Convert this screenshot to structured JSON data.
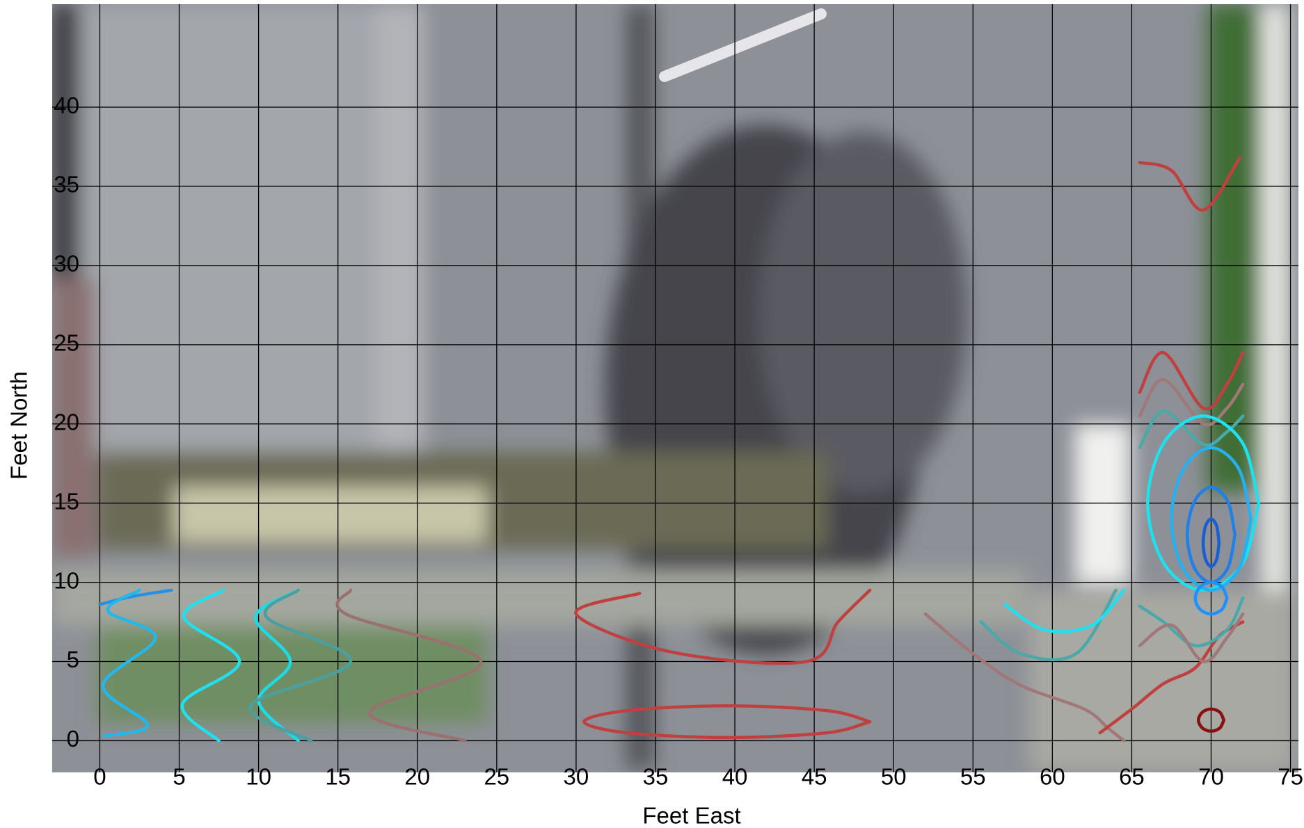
{
  "chart_data": {
    "type": "contour",
    "xlabel": "Feet East",
    "ylabel": "Feet North",
    "xlim": [
      -3,
      75.5
    ],
    "ylim": [
      -2,
      46.5
    ],
    "xticks": [
      0,
      5,
      10,
      15,
      20,
      25,
      30,
      35,
      40,
      45,
      50,
      55,
      60,
      65,
      70,
      75
    ],
    "yticks": [
      0,
      5,
      10,
      15,
      20,
      25,
      30,
      35,
      40
    ],
    "grid": true,
    "series": [
      {
        "color": "#2a8fe0",
        "x": [
          0,
          2,
          4.5
        ],
        "y": [
          8.6,
          9.1,
          9.5
        ]
      },
      {
        "color": "#22b8ee",
        "x": [
          0.3,
          3,
          0.2,
          3.5,
          0.5,
          2.5
        ],
        "y": [
          0.3,
          1,
          3.5,
          6.5,
          8.2,
          9.5
        ]
      },
      {
        "color": "#1fe0f0",
        "x": [
          7.5,
          5.2,
          8.8,
          5.3,
          7.8
        ],
        "y": [
          0,
          2.3,
          5,
          7.8,
          9.5
        ]
      },
      {
        "color": "#18dce8",
        "x": [
          12.5,
          10,
          12,
          9.8,
          12.5
        ],
        "y": [
          0,
          2.5,
          5,
          7.8,
          9.5
        ]
      },
      {
        "color": "#4aa0a0",
        "x": [
          13.3,
          9.5,
          15.8,
          10.5,
          12.5
        ],
        "y": [
          0,
          2.2,
          5,
          7.8,
          9.5
        ]
      },
      {
        "color": "#9a7070",
        "x": [
          23,
          17,
          24,
          15.5,
          15.8
        ],
        "y": [
          0,
          1.8,
          5,
          8,
          9.5
        ]
      },
      {
        "color": "#c04040",
        "x": [
          48.5,
          45.8,
          39.5,
          33.2,
          30.5,
          33.2,
          39.5,
          45.8,
          48.5
        ],
        "y": [
          1.2,
          1.9,
          2.2,
          1.9,
          1.2,
          0.5,
          0.2,
          0.5,
          1.2
        ]
      },
      {
        "color": "#c04040",
        "x": [
          34,
          30,
          36,
          44.5,
          46.5,
          48.5
        ],
        "y": [
          9.3,
          8,
          5.6,
          5,
          7.5,
          9.5
        ]
      },
      {
        "color": "#a07878",
        "x": [
          52,
          55,
          58,
          62,
          63.5,
          64.5
        ],
        "y": [
          8,
          5.5,
          3.5,
          2,
          0.8,
          0
        ]
      },
      {
        "color": "#4aa8a8",
        "x": [
          55.5,
          58,
          61.5,
          64
        ],
        "y": [
          7.5,
          5.5,
          5.5,
          9.5
        ]
      },
      {
        "color": "#1fe0f0",
        "x": [
          57,
          59.5,
          62.5,
          64.5
        ],
        "y": [
          8.6,
          7,
          7.3,
          9.5
        ]
      },
      {
        "color": "#c04040",
        "x": [
          63,
          65,
          67,
          69,
          70.5,
          72
        ],
        "y": [
          0.5,
          2,
          3.6,
          4.6,
          6.6,
          7.5
        ]
      },
      {
        "color": "#c04040",
        "x": [
          65.5,
          67.5,
          69.5,
          71.8
        ],
        "y": [
          36.5,
          36,
          33.5,
          36.8
        ]
      },
      {
        "color": "#c04040",
        "x": [
          65.5,
          67,
          69.5,
          71,
          72
        ],
        "y": [
          22,
          24.5,
          21,
          22.5,
          24.5
        ]
      },
      {
        "color": "#a07878",
        "x": [
          65.5,
          67,
          69.5,
          71,
          72
        ],
        "y": [
          20.5,
          22.8,
          20,
          21,
          22.5
        ]
      },
      {
        "color": "#4aa8a8",
        "x": [
          65.5,
          67,
          69.5,
          71,
          72
        ],
        "y": [
          18.5,
          20.8,
          18.7,
          19.5,
          20.5
        ]
      },
      {
        "color": "#1de0f0",
        "x": [
          73,
          71.95,
          69.5,
          67.05,
          66,
          67.05,
          69.5,
          71.95,
          73
        ],
        "y": [
          15,
          18.85,
          20.5,
          18.85,
          15,
          11.15,
          9.5,
          11.15,
          15
        ]
      },
      {
        "color": "#25b0f0",
        "x": [
          72.5,
          71.75,
          70,
          68.25,
          67.5,
          68.25,
          70,
          71.75,
          72.5
        ],
        "y": [
          14,
          17.15,
          18.5,
          17.15,
          14,
          10.85,
          9.5,
          10.85,
          14
        ]
      },
      {
        "color": "#1f80e8",
        "x": [
          71.5,
          71.05,
          70,
          68.95,
          68.5,
          68.95,
          70,
          71.05,
          71.5
        ],
        "y": [
          13,
          15.1,
          16,
          15.1,
          13,
          10.9,
          10,
          10.9,
          13
        ]
      },
      {
        "color": "#1a5fd0",
        "x": [
          70.5,
          70.35,
          70,
          69.65,
          69.5,
          69.65,
          70,
          70.35,
          70.5
        ],
        "y": [
          12.5,
          13.55,
          14,
          13.55,
          12.5,
          11.45,
          11,
          11.45,
          12.5
        ]
      },
      {
        "color": "#1e90ff",
        "x": [
          71,
          70.7,
          70,
          69.3,
          69,
          69.3,
          70,
          70.7,
          71
        ],
        "y": [
          9,
          9.7,
          10,
          9.7,
          9,
          8.3,
          8,
          8.3,
          9
        ]
      },
      {
        "color": "#4aa8a8",
        "x": [
          65.5,
          67,
          69,
          71,
          72
        ],
        "y": [
          8.5,
          7.5,
          6,
          7,
          9
        ]
      },
      {
        "color": "#a07878",
        "x": [
          65.5,
          67.5,
          69.5,
          71,
          72
        ],
        "y": [
          6,
          7.3,
          5,
          6.5,
          8
        ]
      },
      {
        "color": "#8a1010",
        "x": [
          70.8,
          70.55,
          70,
          69.45,
          69.2,
          69.45,
          70,
          70.55,
          70.8
        ],
        "y": [
          1.3,
          1.8,
          2,
          1.8,
          1.3,
          0.8,
          0.6,
          0.8,
          1.3
        ]
      }
    ]
  }
}
